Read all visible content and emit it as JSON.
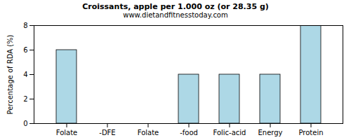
{
  "chart_data": {
    "type": "bar",
    "title": "Croissants, apple per 1.000 oz (or 28.35 g)",
    "subtitle": "www.dietandfitnesstoday.com",
    "y_label": "Percentage of RDA (%)",
    "categories": [
      "Folate",
      "-DFE",
      "Folate",
      "-food",
      "Folic-acid",
      "Energy",
      "Protein"
    ],
    "values": [
      6,
      0,
      0,
      4,
      4,
      4,
      8
    ],
    "color": "#add8e6",
    "ylim": [
      0,
      8
    ],
    "yticks": [
      0,
      2,
      4,
      6,
      8
    ],
    "grid": false
  }
}
